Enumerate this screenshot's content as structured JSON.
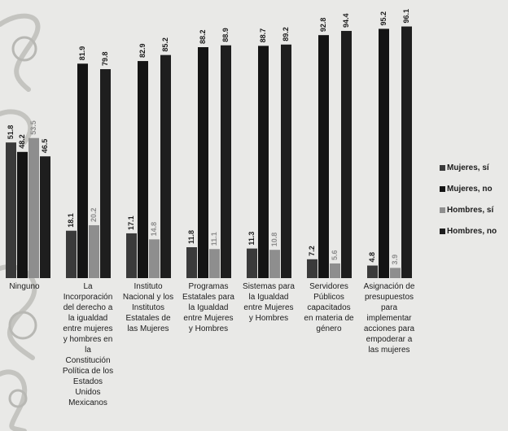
{
  "chart_data": {
    "type": "bar",
    "title": "",
    "xlabel": "",
    "ylabel": "",
    "ylim": [
      0,
      100
    ],
    "grid": false,
    "legend_position": "right",
    "categories": [
      "Ninguno",
      "La\nIncorporación\ndel derecho a\nla igualdad\nentre mujeres\ny hombres en\nla\nConstitución\nPolítica de los\nEstados\nUnidos\nMexicanos",
      "Instituto\nNacional y los\nInstitutos\nEstatales de\nlas Mujeres",
      "Programas\nEstatales para\nla Igualdad\nentre Mujeres\ny Hombres",
      "Sistemas para\nla Igualdad\nentre Mujeres\ny Hombres",
      "Servidores\nPúblicos\ncapacitados\nen materia de\ngénero",
      "Asignación de\npresupuestos\npara\nimplementar\nacciones para\nempoderar a\nlas mujeres"
    ],
    "series": [
      {
        "name": "Mujeres, sí",
        "color": "#3a3a3a",
        "values": [
          51.8,
          18.1,
          17.1,
          11.8,
          11.3,
          7.2,
          4.8
        ]
      },
      {
        "name": "Mujeres, no",
        "color": "#141414",
        "values": [
          48.2,
          81.9,
          82.9,
          88.2,
          88.7,
          92.8,
          95.2
        ]
      },
      {
        "name": "Hombres, sí",
        "color": "#8e8e8e",
        "values": [
          53.5,
          20.2,
          14.8,
          11.1,
          10.8,
          5.6,
          3.9
        ]
      },
      {
        "name": "Hombres, no",
        "color": "#1e1e1e",
        "values": [
          46.5,
          79.8,
          85.2,
          88.9,
          89.2,
          94.4,
          96.1
        ]
      }
    ],
    "value_labels": [
      [
        "51.8",
        "18.1",
        "17.1",
        "11.8",
        "11.3",
        "7.2",
        "4.8"
      ],
      [
        "48.2",
        "81.9",
        "82.9",
        "88.2",
        "88.7",
        "92.8",
        "95.2"
      ],
      [
        "53.5",
        "20.2",
        "14.8",
        "11.1",
        "10.8",
        "5.6",
        "3.9"
      ],
      [
        "46.5",
        "79.8",
        "85.2",
        "88.9",
        "89.2",
        "94.4",
        "96.1"
      ]
    ]
  }
}
